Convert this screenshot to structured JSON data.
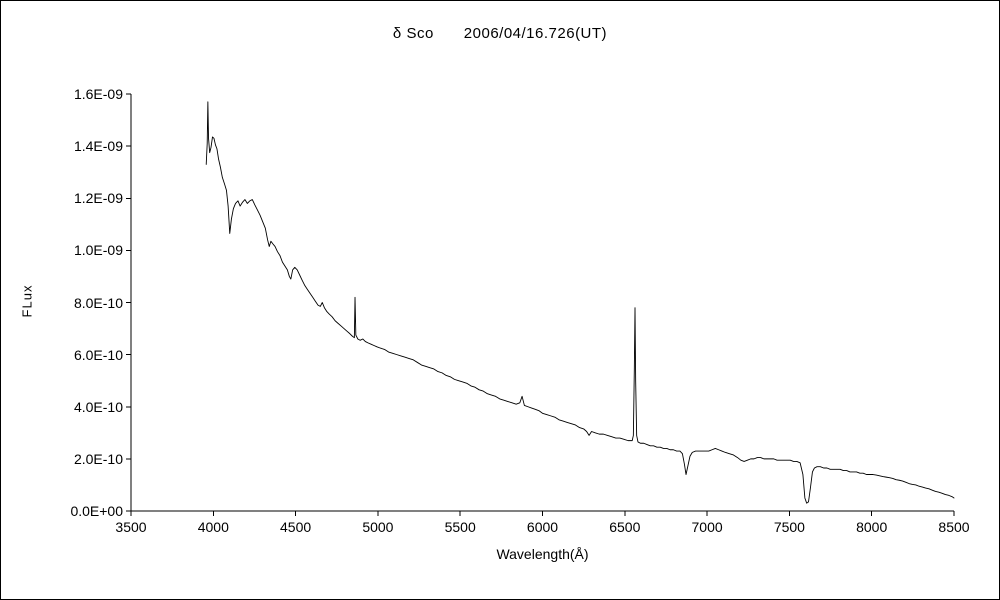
{
  "title": {
    "object_name": "δ Sco",
    "datetime": "2006/04/16.726(UT)"
  },
  "axes": {
    "x_label": "Wavelength(Å)",
    "y_label": "FLux"
  },
  "chart_data": {
    "type": "line",
    "title": "δ Sco 2006/04/16.726(UT)",
    "xlabel": "Wavelength(Å)",
    "ylabel": "FLux",
    "xlim": [
      3500,
      8500
    ],
    "ylim_e10": [
      0,
      16
    ],
    "flux_unit_scale": 1e-10,
    "x_ticks": [
      3500,
      4000,
      4500,
      5000,
      5500,
      6000,
      6500,
      7000,
      7500,
      8000,
      8500
    ],
    "y_ticks": [
      {
        "value_e10": 0,
        "label": "0.0E+00"
      },
      {
        "value_e10": 2,
        "label": "2.0E-10"
      },
      {
        "value_e10": 4,
        "label": "4.0E-10"
      },
      {
        "value_e10": 6,
        "label": "6.0E-10"
      },
      {
        "value_e10": 8,
        "label": "8.0E-10"
      },
      {
        "value_e10": 10,
        "label": "1.0E-09"
      },
      {
        "value_e10": 12,
        "label": "1.2E-09"
      },
      {
        "value_e10": 14,
        "label": "1.4E-09"
      },
      {
        "value_e10": 16,
        "label": "1.6E-09"
      }
    ],
    "points_wavelength_flux_e10": [
      [
        3957,
        13.3
      ],
      [
        3963,
        14.1
      ],
      [
        3967,
        15.7
      ],
      [
        3971,
        14.3
      ],
      [
        3978,
        13.75
      ],
      [
        3986,
        13.95
      ],
      [
        3995,
        14.35
      ],
      [
        4004,
        14.3
      ],
      [
        4013,
        14.05
      ],
      [
        4022,
        13.9
      ],
      [
        4032,
        13.5
      ],
      [
        4043,
        13.2
      ],
      [
        4055,
        12.8
      ],
      [
        4068,
        12.55
      ],
      [
        4080,
        12.3
      ],
      [
        4090,
        11.7
      ],
      [
        4100,
        10.65
      ],
      [
        4110,
        11.2
      ],
      [
        4122,
        11.6
      ],
      [
        4135,
        11.8
      ],
      [
        4150,
        11.9
      ],
      [
        4163,
        11.7
      ],
      [
        4178,
        11.85
      ],
      [
        4192,
        11.95
      ],
      [
        4207,
        11.8
      ],
      [
        4222,
        11.9
      ],
      [
        4237,
        11.95
      ],
      [
        4252,
        11.75
      ],
      [
        4268,
        11.55
      ],
      [
        4284,
        11.35
      ],
      [
        4300,
        11.1
      ],
      [
        4316,
        10.85
      ],
      [
        4330,
        10.4
      ],
      [
        4340,
        10.15
      ],
      [
        4350,
        10.35
      ],
      [
        4362,
        10.25
      ],
      [
        4375,
        10.15
      ],
      [
        4390,
        9.95
      ],
      [
        4405,
        9.8
      ],
      [
        4420,
        9.55
      ],
      [
        4435,
        9.4
      ],
      [
        4450,
        9.25
      ],
      [
        4462,
        9.0
      ],
      [
        4471,
        8.9
      ],
      [
        4482,
        9.25
      ],
      [
        4495,
        9.35
      ],
      [
        4510,
        9.25
      ],
      [
        4525,
        9.05
      ],
      [
        4540,
        8.85
      ],
      [
        4556,
        8.65
      ],
      [
        4572,
        8.5
      ],
      [
        4588,
        8.35
      ],
      [
        4604,
        8.2
      ],
      [
        4620,
        8.05
      ],
      [
        4636,
        7.9
      ],
      [
        4650,
        7.85
      ],
      [
        4662,
        8.0
      ],
      [
        4675,
        7.8
      ],
      [
        4690,
        7.65
      ],
      [
        4705,
        7.55
      ],
      [
        4722,
        7.45
      ],
      [
        4740,
        7.3
      ],
      [
        4758,
        7.2
      ],
      [
        4776,
        7.1
      ],
      [
        4794,
        7.0
      ],
      [
        4812,
        6.9
      ],
      [
        4830,
        6.8
      ],
      [
        4846,
        6.7
      ],
      [
        4857,
        6.65
      ],
      [
        4861,
        8.2
      ],
      [
        4866,
        6.75
      ],
      [
        4878,
        6.6
      ],
      [
        4892,
        6.55
      ],
      [
        4908,
        6.6
      ],
      [
        4924,
        6.5
      ],
      [
        4940,
        6.45
      ],
      [
        4958,
        6.4
      ],
      [
        4976,
        6.35
      ],
      [
        4994,
        6.3
      ],
      [
        5015,
        6.25
      ],
      [
        5040,
        6.2
      ],
      [
        5065,
        6.1
      ],
      [
        5090,
        6.05
      ],
      [
        5115,
        6.0
      ],
      [
        5140,
        5.95
      ],
      [
        5165,
        5.9
      ],
      [
        5190,
        5.85
      ],
      [
        5215,
        5.8
      ],
      [
        5240,
        5.7
      ],
      [
        5265,
        5.6
      ],
      [
        5290,
        5.55
      ],
      [
        5315,
        5.5
      ],
      [
        5340,
        5.45
      ],
      [
        5365,
        5.35
      ],
      [
        5390,
        5.3
      ],
      [
        5415,
        5.2
      ],
      [
        5440,
        5.15
      ],
      [
        5465,
        5.05
      ],
      [
        5490,
        5.0
      ],
      [
        5515,
        4.95
      ],
      [
        5540,
        4.9
      ],
      [
        5565,
        4.8
      ],
      [
        5590,
        4.75
      ],
      [
        5615,
        4.65
      ],
      [
        5640,
        4.6
      ],
      [
        5665,
        4.5
      ],
      [
        5690,
        4.45
      ],
      [
        5715,
        4.4
      ],
      [
        5740,
        4.3
      ],
      [
        5765,
        4.25
      ],
      [
        5790,
        4.2
      ],
      [
        5815,
        4.15
      ],
      [
        5840,
        4.1
      ],
      [
        5862,
        4.15
      ],
      [
        5876,
        4.4
      ],
      [
        5890,
        4.05
      ],
      [
        5912,
        4.0
      ],
      [
        5934,
        3.95
      ],
      [
        5956,
        3.9
      ],
      [
        5978,
        3.85
      ],
      [
        6000,
        3.75
      ],
      [
        6025,
        3.7
      ],
      [
        6050,
        3.65
      ],
      [
        6075,
        3.6
      ],
      [
        6100,
        3.5
      ],
      [
        6125,
        3.45
      ],
      [
        6150,
        3.4
      ],
      [
        6175,
        3.35
      ],
      [
        6200,
        3.3
      ],
      [
        6225,
        3.2
      ],
      [
        6250,
        3.15
      ],
      [
        6268,
        3.05
      ],
      [
        6283,
        2.9
      ],
      [
        6298,
        3.05
      ],
      [
        6320,
        3.0
      ],
      [
        6345,
        2.95
      ],
      [
        6370,
        2.95
      ],
      [
        6395,
        2.9
      ],
      [
        6420,
        2.85
      ],
      [
        6445,
        2.8
      ],
      [
        6470,
        2.8
      ],
      [
        6495,
        2.75
      ],
      [
        6520,
        2.7
      ],
      [
        6540,
        2.7
      ],
      [
        6545,
        2.7
      ],
      [
        6552,
        2.9
      ],
      [
        6558,
        5.5
      ],
      [
        6562,
        7.8
      ],
      [
        6566,
        5.0
      ],
      [
        6572,
        2.9
      ],
      [
        6580,
        2.65
      ],
      [
        6595,
        2.6
      ],
      [
        6615,
        2.6
      ],
      [
        6635,
        2.55
      ],
      [
        6655,
        2.5
      ],
      [
        6675,
        2.5
      ],
      [
        6695,
        2.45
      ],
      [
        6715,
        2.45
      ],
      [
        6735,
        2.4
      ],
      [
        6755,
        2.4
      ],
      [
        6775,
        2.35
      ],
      [
        6795,
        2.35
      ],
      [
        6815,
        2.3
      ],
      [
        6835,
        2.3
      ],
      [
        6850,
        2.2
      ],
      [
        6862,
        1.8
      ],
      [
        6872,
        1.4
      ],
      [
        6884,
        1.75
      ],
      [
        6896,
        2.1
      ],
      [
        6910,
        2.25
      ],
      [
        6930,
        2.3
      ],
      [
        6950,
        2.3
      ],
      [
        6970,
        2.3
      ],
      [
        6990,
        2.3
      ],
      [
        7010,
        2.3
      ],
      [
        7030,
        2.35
      ],
      [
        7050,
        2.4
      ],
      [
        7070,
        2.35
      ],
      [
        7090,
        2.3
      ],
      [
        7110,
        2.25
      ],
      [
        7135,
        2.2
      ],
      [
        7160,
        2.15
      ],
      [
        7185,
        2.05
      ],
      [
        7205,
        1.95
      ],
      [
        7225,
        1.9
      ],
      [
        7245,
        1.95
      ],
      [
        7265,
        2.0
      ],
      [
        7285,
        2.0
      ],
      [
        7305,
        2.05
      ],
      [
        7325,
        2.05
      ],
      [
        7345,
        2.0
      ],
      [
        7365,
        2.0
      ],
      [
        7385,
        2.0
      ],
      [
        7405,
        2.0
      ],
      [
        7425,
        1.95
      ],
      [
        7445,
        1.95
      ],
      [
        7465,
        1.95
      ],
      [
        7485,
        1.95
      ],
      [
        7505,
        1.95
      ],
      [
        7525,
        1.9
      ],
      [
        7545,
        1.9
      ],
      [
        7565,
        1.85
      ],
      [
        7582,
        1.4
      ],
      [
        7594,
        0.5
      ],
      [
        7605,
        0.3
      ],
      [
        7616,
        0.35
      ],
      [
        7628,
        0.9
      ],
      [
        7640,
        1.5
      ],
      [
        7652,
        1.65
      ],
      [
        7668,
        1.7
      ],
      [
        7688,
        1.7
      ],
      [
        7708,
        1.65
      ],
      [
        7728,
        1.65
      ],
      [
        7748,
        1.6
      ],
      [
        7768,
        1.6
      ],
      [
        7788,
        1.6
      ],
      [
        7808,
        1.6
      ],
      [
        7828,
        1.55
      ],
      [
        7848,
        1.55
      ],
      [
        7868,
        1.5
      ],
      [
        7888,
        1.5
      ],
      [
        7908,
        1.5
      ],
      [
        7928,
        1.45
      ],
      [
        7948,
        1.45
      ],
      [
        7968,
        1.4
      ],
      [
        7988,
        1.4
      ],
      [
        8008,
        1.4
      ],
      [
        8028,
        1.38
      ],
      [
        8048,
        1.35
      ],
      [
        8068,
        1.32
      ],
      [
        8088,
        1.3
      ],
      [
        8108,
        1.28
      ],
      [
        8128,
        1.25
      ],
      [
        8148,
        1.2
      ],
      [
        8168,
        1.18
      ],
      [
        8188,
        1.15
      ],
      [
        8208,
        1.1
      ],
      [
        8228,
        1.05
      ],
      [
        8248,
        1.02
      ],
      [
        8268,
        1.0
      ],
      [
        8288,
        0.95
      ],
      [
        8308,
        0.92
      ],
      [
        8328,
        0.88
      ],
      [
        8348,
        0.85
      ],
      [
        8368,
        0.8
      ],
      [
        8388,
        0.75
      ],
      [
        8408,
        0.72
      ],
      [
        8428,
        0.68
      ],
      [
        8448,
        0.63
      ],
      [
        8468,
        0.6
      ],
      [
        8488,
        0.55
      ],
      [
        8500,
        0.5
      ]
    ],
    "legend": "none",
    "grid": "off",
    "line_color": "#000000",
    "background_color": "#ffffff"
  }
}
